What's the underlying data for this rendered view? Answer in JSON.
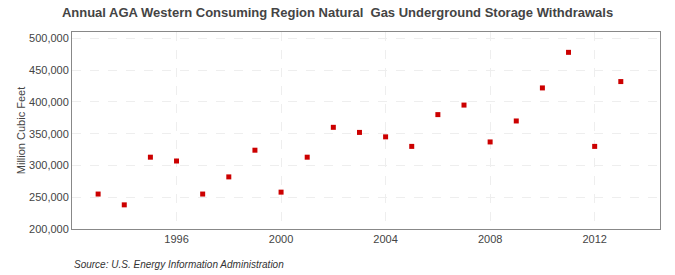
{
  "chart_data": {
    "type": "scatter",
    "title": "Annual AGA Western Consuming Region Natural  Gas Underground Storage Withdrawals",
    "ylabel": "Million Cubic Feet",
    "annotations": [
      "Source: U.S. Energy Information Administration"
    ],
    "x": [
      1993,
      1994,
      1995,
      1996,
      1997,
      1998,
      1999,
      2000,
      2001,
      2002,
      2003,
      2004,
      2005,
      2006,
      2007,
      2008,
      2009,
      2010,
      2011,
      2012,
      2013
    ],
    "values": [
      255000,
      238000,
      313000,
      307000,
      255000,
      282000,
      324000,
      258000,
      313000,
      360000,
      352000,
      345000,
      330000,
      380000,
      395000,
      337000,
      370000,
      422000,
      478000,
      330000,
      432000
    ],
    "color": "#CC0000",
    "marker": "square",
    "xlim": [
      1992.0,
      2014.5
    ],
    "ylim": [
      200000,
      510000
    ],
    "xticks": [
      1996,
      2000,
      2004,
      2008,
      2012
    ],
    "yticks": [
      {
        "value": 200000,
        "label": "200,000"
      },
      {
        "value": 250000,
        "label": "250,000"
      },
      {
        "value": 300000,
        "label": "300,000"
      },
      {
        "value": 350000,
        "label": "350,000"
      },
      {
        "value": 400000,
        "label": "400,000"
      },
      {
        "value": 450000,
        "label": "450,000"
      },
      {
        "value": 500000,
        "label": "500,000"
      }
    ],
    "grid": true
  }
}
